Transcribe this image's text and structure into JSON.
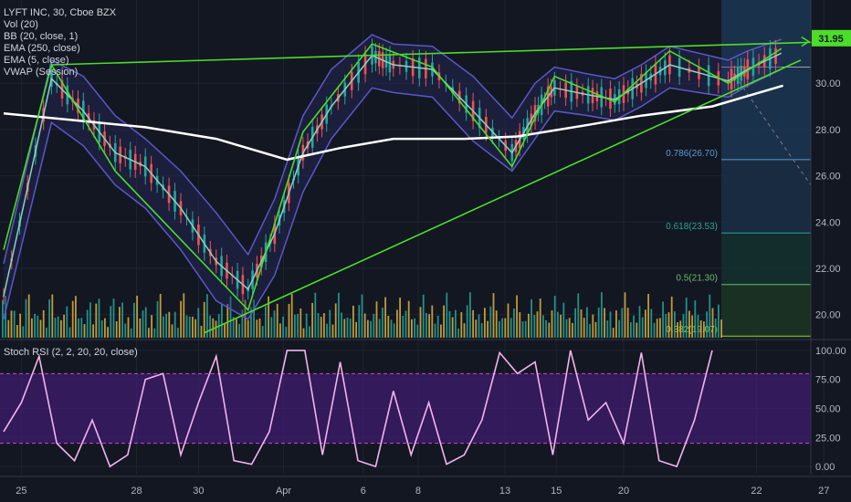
{
  "legend": {
    "symbol": "LYFT INC, 30, Cboe BZX",
    "indicators": [
      "Vol (20)",
      "BB (20, close, 1)",
      "EMA (250, close)",
      "EMA (5, close)",
      "VWAP (Session)"
    ]
  },
  "stoch_legend": "Stoch RSI (2, 2, 20, 20, close)",
  "price_badge": "31.95",
  "colors": {
    "background": "#131722",
    "green_line": "#4cdd2a",
    "badge": "#4cdd2a",
    "bb": "#5b57c6",
    "ema5": "#8cd3c0",
    "ema250": "#ffffff",
    "stoch": "#f3b3ef",
    "stoch_band": "#4a1d80",
    "volume_up": "#26a69a",
    "volume_down": "#e0b23a",
    "candle_up": "#26a69a",
    "candle_down": "#ef5350"
  },
  "fib_levels": [
    {
      "label": "0.786(26.70)",
      "value": 26.7,
      "color": "#5b9bd5"
    },
    {
      "label": "0.618(23.53)",
      "value": 23.53,
      "color": "#26a69a"
    },
    {
      "label": "0.5(21.30)",
      "value": 21.3,
      "color": "#66bb6a"
    },
    {
      "label": "0.382(19.07)",
      "value": 19.07,
      "color": "#9bc53d"
    }
  ],
  "chart_data": {
    "type": "line",
    "price_axis": {
      "ticks": [
        20,
        22,
        24,
        26,
        28,
        30
      ],
      "labels": [
        "20.00",
        "22.00",
        "24.00",
        "26.00",
        "28.00",
        "30.00"
      ],
      "range": [
        19.0,
        33.6
      ]
    },
    "stoch_axis": {
      "ticks": [
        0,
        25,
        50,
        75,
        100
      ],
      "labels": [
        "0.00",
        "25.00",
        "50.00",
        "75.00",
        "100.00"
      ],
      "range": [
        -7,
        107
      ]
    },
    "x_labels": [
      "25",
      "28",
      "30",
      "Apr",
      "6",
      "8",
      "13",
      "15",
      "20",
      "22",
      "27",
      "29"
    ],
    "trend_lines": {
      "zigzag": [
        [
          0,
          22.8
        ],
        [
          2.7,
          30.8
        ],
        [
          6.3,
          26.2
        ],
        [
          13.8,
          20.2
        ],
        [
          16.9,
          27.9
        ],
        [
          20.8,
          31.7
        ],
        [
          24.2,
          30.7
        ],
        [
          28.7,
          26.4
        ],
        [
          31.1,
          30.3
        ],
        [
          34.5,
          29.2
        ],
        [
          37.6,
          31.4
        ],
        [
          40.9,
          30.0
        ],
        [
          43.9,
          31.5
        ]
      ],
      "resistance_line": [
        [
          2.7,
          30.8
        ],
        [
          46.9,
          31.8
        ]
      ],
      "support_line": [
        [
          11.3,
          19.2
        ],
        [
          45.0,
          31.0
        ]
      ]
    },
    "ema250": [
      [
        0,
        28.7
      ],
      [
        4,
        28.4
      ],
      [
        8,
        28.1
      ],
      [
        12,
        27.6
      ],
      [
        16,
        26.7
      ],
      [
        19,
        27.2
      ],
      [
        22,
        27.6
      ],
      [
        26,
        27.6
      ],
      [
        29,
        27.7
      ],
      [
        33,
        28.2
      ],
      [
        36,
        28.6
      ],
      [
        40,
        29.0
      ],
      [
        44,
        29.9
      ]
    ],
    "ema5": [
      [
        0,
        20.8
      ],
      [
        2.7,
        30.2
      ],
      [
        4.5,
        28.8
      ],
      [
        6.3,
        27.0
      ],
      [
        8,
        26.4
      ],
      [
        10,
        24.6
      ],
      [
        12,
        22.3
      ],
      [
        13.8,
        21.1
      ],
      [
        15.3,
        23.5
      ],
      [
        16.9,
        27.0
      ],
      [
        18.5,
        29.0
      ],
      [
        20.8,
        31.2
      ],
      [
        22,
        30.8
      ],
      [
        24.2,
        30.6
      ],
      [
        26.5,
        28.8
      ],
      [
        28.7,
        27.0
      ],
      [
        30,
        28.7
      ],
      [
        31.1,
        29.8
      ],
      [
        33,
        29.5
      ],
      [
        34.5,
        29.3
      ],
      [
        36,
        30.0
      ],
      [
        37.6,
        30.8
      ],
      [
        40.9,
        30.1
      ],
      [
        42,
        30.6
      ],
      [
        43.9,
        31.3
      ]
    ],
    "bb_upper": [
      [
        0,
        22.2
      ],
      [
        2.7,
        31.0
      ],
      [
        4.5,
        30.3
      ],
      [
        6.3,
        28.6
      ],
      [
        8,
        27.6
      ],
      [
        10,
        26.2
      ],
      [
        12,
        24.4
      ],
      [
        13.8,
        22.6
      ],
      [
        15.3,
        25.0
      ],
      [
        16.9,
        28.6
      ],
      [
        18.5,
        30.6
      ],
      [
        20.8,
        32.1
      ],
      [
        22,
        31.7
      ],
      [
        24.2,
        31.6
      ],
      [
        26.5,
        30.3
      ],
      [
        28.7,
        28.5
      ],
      [
        30,
        30.0
      ],
      [
        31.1,
        30.7
      ],
      [
        33,
        30.4
      ],
      [
        34.5,
        30.2
      ],
      [
        36,
        30.8
      ],
      [
        37.6,
        31.6
      ],
      [
        40.9,
        31.0
      ],
      [
        42,
        31.4
      ],
      [
        43.9,
        31.9
      ]
    ],
    "bb_lower": [
      [
        0,
        19.8
      ],
      [
        2.7,
        28.3
      ],
      [
        4.5,
        27.3
      ],
      [
        6.3,
        25.6
      ],
      [
        8,
        24.6
      ],
      [
        10,
        22.8
      ],
      [
        12,
        20.6
      ],
      [
        13.8,
        19.8
      ],
      [
        15.3,
        21.7
      ],
      [
        16.9,
        25.3
      ],
      [
        18.5,
        27.6
      ],
      [
        20.8,
        29.8
      ],
      [
        22,
        29.6
      ],
      [
        24.2,
        29.4
      ],
      [
        26.5,
        27.5
      ],
      [
        28.7,
        26.2
      ],
      [
        30,
        27.6
      ],
      [
        31.1,
        28.8
      ],
      [
        33,
        28.6
      ],
      [
        34.5,
        28.4
      ],
      [
        36,
        29.0
      ],
      [
        37.6,
        29.8
      ],
      [
        40.9,
        29.4
      ],
      [
        42,
        29.9
      ],
      [
        43.9,
        30.6
      ]
    ],
    "stoch_rsi": [
      [
        0,
        30
      ],
      [
        1,
        55
      ],
      [
        2,
        95
      ],
      [
        3,
        20
      ],
      [
        4,
        5
      ],
      [
        5,
        40
      ],
      [
        6,
        0
      ],
      [
        7,
        10
      ],
      [
        8,
        75
      ],
      [
        9,
        80
      ],
      [
        10,
        10
      ],
      [
        11,
        55
      ],
      [
        12,
        95
      ],
      [
        13,
        5
      ],
      [
        14,
        2
      ],
      [
        15,
        30
      ],
      [
        16,
        100
      ],
      [
        17,
        100
      ],
      [
        18,
        10
      ],
      [
        19,
        90
      ],
      [
        20,
        5
      ],
      [
        21,
        0
      ],
      [
        22,
        65
      ],
      [
        23,
        10
      ],
      [
        24,
        55
      ],
      [
        25,
        2
      ],
      [
        26,
        10
      ],
      [
        27,
        40
      ],
      [
        28,
        98
      ],
      [
        29,
        80
      ],
      [
        30,
        90
      ],
      [
        31,
        10
      ],
      [
        32,
        100
      ],
      [
        33,
        40
      ],
      [
        34,
        55
      ],
      [
        35,
        20
      ],
      [
        36,
        98
      ],
      [
        37,
        5
      ],
      [
        38,
        0
      ],
      [
        39,
        40
      ],
      [
        40,
        100
      ]
    ]
  }
}
